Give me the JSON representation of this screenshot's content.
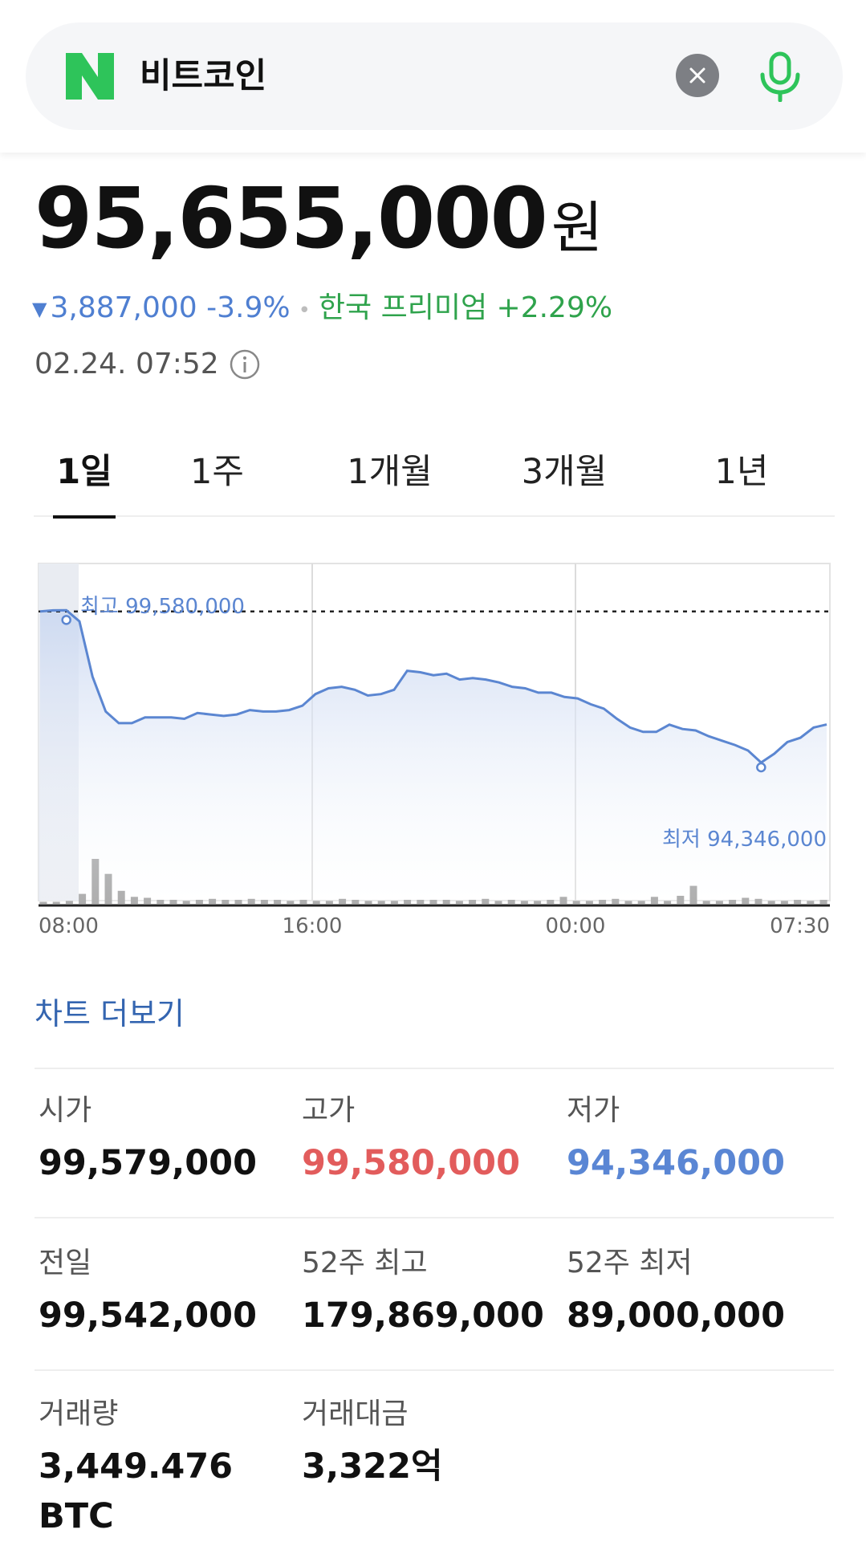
{
  "search": {
    "query": "비트코인"
  },
  "price": {
    "value": "95,655,000",
    "unit": "원",
    "change": "3,887,000 -3.9%",
    "premium": "한국 프리미엄 +2.29%",
    "timestamp": "02.24. 07:52"
  },
  "tabs": [
    "1일",
    "1주",
    "1개월",
    "3개월",
    "1년"
  ],
  "active_tab": "1일",
  "colors": {
    "up": "#e25c5c",
    "down": "#5a86d4",
    "premium": "#2fa34c",
    "line": "#5b86d1"
  },
  "chart_data": {
    "type": "line",
    "x_ticks": [
      "08:00",
      "16:00",
      "00:00",
      "07:30"
    ],
    "high_label": "최고 99,580,000",
    "low_label": "최저 94,346,000",
    "high": 99580000,
    "low": 94346000,
    "reference_line": 99542000,
    "price_series": [
      99542000,
      99579000,
      99580000,
      99200000,
      97300000,
      96100000,
      95700000,
      95700000,
      95900000,
      95900000,
      95900000,
      95850000,
      96050000,
      96000000,
      95950000,
      96000000,
      96150000,
      96100000,
      96100000,
      96150000,
      96300000,
      96700000,
      96900000,
      96950000,
      96850000,
      96650000,
      96700000,
      96850000,
      97500000,
      97450000,
      97350000,
      97400000,
      97200000,
      97250000,
      97200000,
      97100000,
      96950000,
      96900000,
      96750000,
      96750000,
      96600000,
      96550000,
      96350000,
      96200000,
      95850000,
      95550000,
      95400000,
      95400000,
      95650000,
      95500000,
      95450000,
      95250000,
      95100000,
      94950000,
      94760000,
      94346000,
      94650000,
      95050000,
      95200000,
      95550000,
      95655000
    ],
    "volume_series": [
      0.2,
      0.2,
      0.3,
      1.0,
      4.5,
      3.0,
      1.3,
      0.7,
      0.6,
      0.4,
      0.4,
      0.3,
      0.4,
      0.5,
      0.4,
      0.4,
      0.5,
      0.4,
      0.4,
      0.3,
      0.4,
      0.3,
      0.3,
      0.5,
      0.4,
      0.3,
      0.3,
      0.3,
      0.4,
      0.4,
      0.4,
      0.4,
      0.3,
      0.4,
      0.5,
      0.3,
      0.4,
      0.3,
      0.3,
      0.4,
      0.7,
      0.3,
      0.3,
      0.4,
      0.5,
      0.3,
      0.3,
      0.7,
      0.3,
      0.8,
      1.8,
      0.3,
      0.3,
      0.4,
      0.6,
      0.5,
      0.3,
      0.3,
      0.4,
      0.3,
      0.4
    ]
  },
  "more_chart": "차트 더보기",
  "stats": [
    {
      "label": "시가",
      "value": "99,579,000",
      "tone": "normal"
    },
    {
      "label": "고가",
      "value": "99,580,000",
      "tone": "red"
    },
    {
      "label": "저가",
      "value": "94,346,000",
      "tone": "blue"
    },
    {
      "label": "전일",
      "value": "99,542,000",
      "tone": "normal"
    },
    {
      "label": "52주 최고",
      "value": "179,869,000",
      "tone": "normal"
    },
    {
      "label": "52주 최저",
      "value": "89,000,000",
      "tone": "normal"
    },
    {
      "label": "거래량",
      "value": "3,449.476",
      "value2": "BTC",
      "tone": "normal"
    },
    {
      "label": "거래대금",
      "value": "3,322억",
      "tone": "normal"
    }
  ]
}
